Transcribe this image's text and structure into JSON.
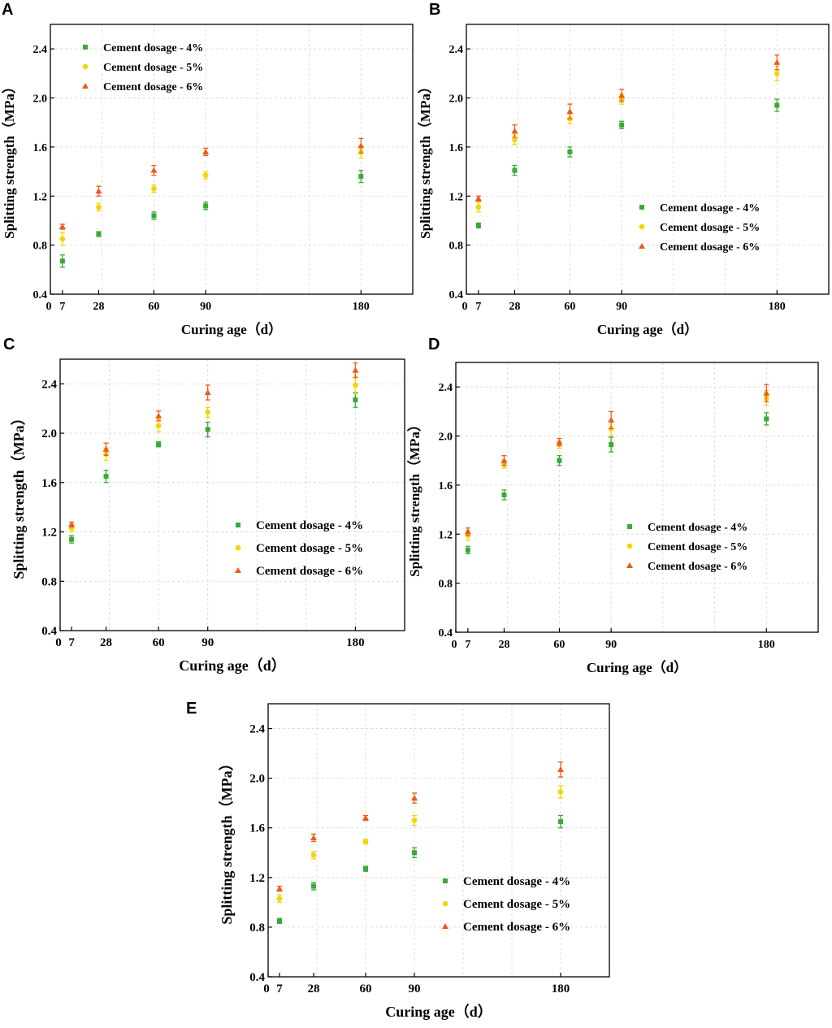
{
  "colors": {
    "dosage_4": "#3aaa35",
    "dosage_5": "#f2d600",
    "dosage_6": "#ee5a1c"
  },
  "chart_data": [
    {
      "panel": "A",
      "type": "scatter",
      "xlabel": "Curing age（d）",
      "ylabel": "Splitting strength（MPa）",
      "xlim": [
        0,
        210
      ],
      "ylim": [
        0.4,
        2.6
      ],
      "x_ticks": [
        0,
        7,
        28,
        60,
        90,
        180
      ],
      "y_ticks": [
        0.4,
        0.8,
        1.2,
        1.6,
        2.0,
        2.4
      ],
      "legend_position": "top-left",
      "x": [
        7,
        28,
        60,
        90,
        180
      ],
      "series": [
        {
          "name": "Cement dosage - 4%",
          "marker": "square",
          "values": [
            0.67,
            0.89,
            1.04,
            1.12,
            1.36
          ],
          "errors": [
            0.05,
            0.02,
            0.03,
            0.03,
            0.05
          ]
        },
        {
          "name": "Cement dosage - 5%",
          "marker": "circle",
          "values": [
            0.85,
            1.11,
            1.26,
            1.37,
            1.56
          ],
          "errors": [
            0.05,
            0.03,
            0.03,
            0.03,
            0.05
          ]
        },
        {
          "name": "Cement dosage - 6%",
          "marker": "triangle",
          "values": [
            0.95,
            1.24,
            1.41,
            1.56,
            1.61
          ],
          "errors": [
            0.02,
            0.04,
            0.04,
            0.03,
            0.06
          ]
        }
      ]
    },
    {
      "panel": "B",
      "type": "scatter",
      "xlabel": "Curing age（d）",
      "ylabel": "Splitting strength（MPa）",
      "xlim": [
        0,
        210
      ],
      "ylim": [
        0.4,
        2.6
      ],
      "x_ticks": [
        0,
        7,
        28,
        60,
        90,
        180
      ],
      "y_ticks": [
        0.4,
        0.8,
        1.2,
        1.6,
        2.0,
        2.4
      ],
      "legend_position": "center-right",
      "x": [
        7,
        28,
        60,
        90,
        180
      ],
      "series": [
        {
          "name": "Cement dosage - 4%",
          "marker": "square",
          "values": [
            0.96,
            1.41,
            1.56,
            1.78,
            1.94
          ],
          "errors": [
            0.02,
            0.04,
            0.04,
            0.03,
            0.05
          ]
        },
        {
          "name": "Cement dosage - 5%",
          "marker": "circle",
          "values": [
            1.11,
            1.66,
            1.83,
            1.99,
            2.2
          ],
          "errors": [
            0.04,
            0.04,
            0.04,
            0.04,
            0.06
          ]
        },
        {
          "name": "Cement dosage - 6%",
          "marker": "triangle",
          "values": [
            1.18,
            1.73,
            1.89,
            2.02,
            2.29
          ],
          "errors": [
            0.02,
            0.05,
            0.06,
            0.05,
            0.06
          ]
        }
      ]
    },
    {
      "panel": "C",
      "type": "scatter",
      "xlabel": "Curing age（d）",
      "ylabel": "Splitting strength（MPa）",
      "xlim": [
        0,
        210
      ],
      "ylim": [
        0.4,
        2.6
      ],
      "x_ticks": [
        0,
        7,
        28,
        60,
        90,
        180
      ],
      "y_ticks": [
        0.4,
        0.8,
        1.2,
        1.6,
        2.0,
        2.4
      ],
      "legend_position": "bottom-right",
      "x": [
        7,
        28,
        60,
        90,
        180
      ],
      "series": [
        {
          "name": "Cement dosage - 4%",
          "marker": "square",
          "values": [
            1.14,
            1.65,
            1.91,
            2.03,
            2.27
          ],
          "errors": [
            0.03,
            0.05,
            0.02,
            0.06,
            0.06
          ]
        },
        {
          "name": "Cement dosage - 5%",
          "marker": "circle",
          "values": [
            1.23,
            1.83,
            2.06,
            2.17,
            2.39
          ],
          "errors": [
            0.03,
            0.05,
            0.05,
            0.04,
            0.07
          ]
        },
        {
          "name": "Cement dosage - 6%",
          "marker": "triangle",
          "values": [
            1.26,
            1.87,
            2.14,
            2.33,
            2.51
          ],
          "errors": [
            0.02,
            0.05,
            0.04,
            0.06,
            0.06
          ]
        }
      ]
    },
    {
      "panel": "D",
      "type": "scatter",
      "xlabel": "Curing age（d）",
      "ylabel": "Splitting strength（MPa）",
      "xlim": [
        0,
        210
      ],
      "ylim": [
        0.4,
        2.6
      ],
      "x_ticks": [
        0,
        7,
        28,
        60,
        90,
        180
      ],
      "y_ticks": [
        0.4,
        0.8,
        1.2,
        1.6,
        2.0,
        2.4
      ],
      "legend_position": "bottom-right",
      "x": [
        7,
        28,
        60,
        90,
        180
      ],
      "series": [
        {
          "name": "Cement dosage - 4%",
          "marker": "square",
          "values": [
            1.07,
            1.52,
            1.8,
            1.93,
            2.14
          ],
          "errors": [
            0.03,
            0.04,
            0.04,
            0.06,
            0.05
          ]
        },
        {
          "name": "Cement dosage - 5%",
          "marker": "circle",
          "values": [
            1.19,
            1.77,
            1.93,
            2.06,
            2.31
          ],
          "errors": [
            0.04,
            0.03,
            0.03,
            0.06,
            0.06
          ]
        },
        {
          "name": "Cement dosage - 6%",
          "marker": "triangle",
          "values": [
            1.22,
            1.8,
            1.95,
            2.13,
            2.35
          ],
          "errors": [
            0.03,
            0.04,
            0.03,
            0.07,
            0.07
          ]
        }
      ]
    },
    {
      "panel": "E",
      "type": "scatter",
      "xlabel": "Curing age（d）",
      "ylabel": "Splitting strength（MPa）",
      "xlim": [
        0,
        210
      ],
      "ylim": [
        0.4,
        2.6
      ],
      "x_ticks": [
        0,
        7,
        28,
        60,
        90,
        180
      ],
      "y_ticks": [
        0.4,
        0.8,
        1.2,
        1.6,
        2.0,
        2.4
      ],
      "legend_position": "bottom-right",
      "x": [
        7,
        28,
        60,
        90,
        180
      ],
      "series": [
        {
          "name": "Cement dosage - 4%",
          "marker": "square",
          "values": [
            0.85,
            1.13,
            1.27,
            1.4,
            1.65
          ],
          "errors": [
            0.02,
            0.03,
            0.02,
            0.04,
            0.05
          ]
        },
        {
          "name": "Cement dosage - 5%",
          "marker": "circle",
          "values": [
            1.03,
            1.38,
            1.49,
            1.66,
            1.89
          ],
          "errors": [
            0.03,
            0.03,
            0.02,
            0.04,
            0.05
          ]
        },
        {
          "name": "Cement dosage - 6%",
          "marker": "triangle",
          "values": [
            1.11,
            1.52,
            1.68,
            1.84,
            2.07
          ],
          "errors": [
            0.02,
            0.03,
            0.02,
            0.04,
            0.06
          ]
        }
      ]
    }
  ]
}
